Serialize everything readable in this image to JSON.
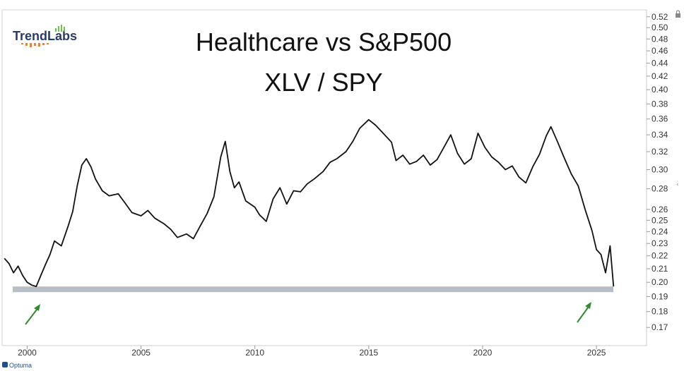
{
  "logo": {
    "text": "TrendLabs"
  },
  "watermark": {
    "text": "Optuma"
  },
  "chart_data": {
    "type": "line",
    "title": "Healthcare vs S&P500",
    "subtitle": "XLV / SPY",
    "xlabel": "",
    "ylabel": "",
    "y_scale": "log",
    "xlim": [
      1998.9,
      2027.2
    ],
    "ylim": [
      0.165,
      0.525
    ],
    "x_ticks": [
      "2000",
      "2005",
      "2010",
      "2015",
      "2020",
      "2025"
    ],
    "y_ticks": [
      "0.52",
      "0.50",
      "0.48",
      "0.46",
      "0.44",
      "0.42",
      "0.40",
      "0.38",
      "0.36",
      "0.34",
      "0.32",
      "0.30",
      "0.28",
      "0.26",
      "0.25",
      "0.24",
      "0.23",
      "0.22",
      "0.21",
      "0.20",
      "0.19",
      "0.18",
      "0.17"
    ],
    "support_level": 0.195,
    "grid": false,
    "legend": "none",
    "colors": {
      "line": "#111111",
      "support": "#b8bec6",
      "arrows": "#2e8b2e",
      "axis": "#cccccc"
    },
    "series": [
      {
        "x": [
          1999.0,
          1999.2,
          1999.4,
          1999.6,
          1999.8,
          2000.0,
          2000.2,
          2000.4,
          2000.6,
          2000.8,
          2001.0,
          2001.2,
          2001.5,
          2001.8,
          2002.0,
          2002.2,
          2002.4,
          2002.6,
          2002.8,
          2003.0,
          2003.3,
          2003.6,
          2004.0,
          2004.3,
          2004.6,
          2005.0,
          2005.3,
          2005.6,
          2006.0,
          2006.3,
          2006.6,
          2007.0,
          2007.3,
          2007.6,
          2007.9,
          2008.2,
          2008.5,
          2008.7,
          2008.9,
          2009.1,
          2009.3,
          2009.6,
          2010.0,
          2010.2,
          2010.5,
          2010.8,
          2011.1,
          2011.4,
          2011.7,
          2012.0,
          2012.3,
          2012.6,
          2013.0,
          2013.3,
          2013.6,
          2014.0,
          2014.3,
          2014.6,
          2015.0,
          2015.3,
          2015.6,
          2016.0,
          2016.2,
          2016.5,
          2016.8,
          2017.1,
          2017.4,
          2017.7,
          2018.0,
          2018.3,
          2018.6,
          2018.9,
          2019.2,
          2019.5,
          2019.8,
          2020.1,
          2020.4,
          2020.7,
          2021.0,
          2021.3,
          2021.6,
          2021.9,
          2022.2,
          2022.5,
          2022.8,
          2023.0,
          2023.3,
          2023.6,
          2023.9,
          2024.2,
          2024.5,
          2024.8,
          2025.0,
          2025.2,
          2025.4,
          2025.6,
          2025.75
        ],
        "values": [
          0.218,
          0.214,
          0.207,
          0.212,
          0.205,
          0.2,
          0.198,
          0.197,
          0.205,
          0.213,
          0.221,
          0.232,
          0.228,
          0.245,
          0.258,
          0.283,
          0.305,
          0.312,
          0.303,
          0.29,
          0.278,
          0.273,
          0.275,
          0.266,
          0.257,
          0.254,
          0.259,
          0.252,
          0.247,
          0.242,
          0.235,
          0.238,
          0.234,
          0.245,
          0.256,
          0.272,
          0.314,
          0.332,
          0.298,
          0.281,
          0.287,
          0.268,
          0.262,
          0.255,
          0.249,
          0.27,
          0.281,
          0.265,
          0.278,
          0.277,
          0.285,
          0.29,
          0.298,
          0.308,
          0.312,
          0.32,
          0.332,
          0.348,
          0.359,
          0.352,
          0.343,
          0.331,
          0.31,
          0.316,
          0.306,
          0.309,
          0.316,
          0.305,
          0.311,
          0.325,
          0.34,
          0.318,
          0.306,
          0.312,
          0.342,
          0.325,
          0.314,
          0.308,
          0.3,
          0.304,
          0.292,
          0.286,
          0.303,
          0.317,
          0.339,
          0.35,
          0.331,
          0.312,
          0.295,
          0.283,
          0.26,
          0.241,
          0.225,
          0.221,
          0.207,
          0.228,
          0.197
        ]
      }
    ]
  }
}
